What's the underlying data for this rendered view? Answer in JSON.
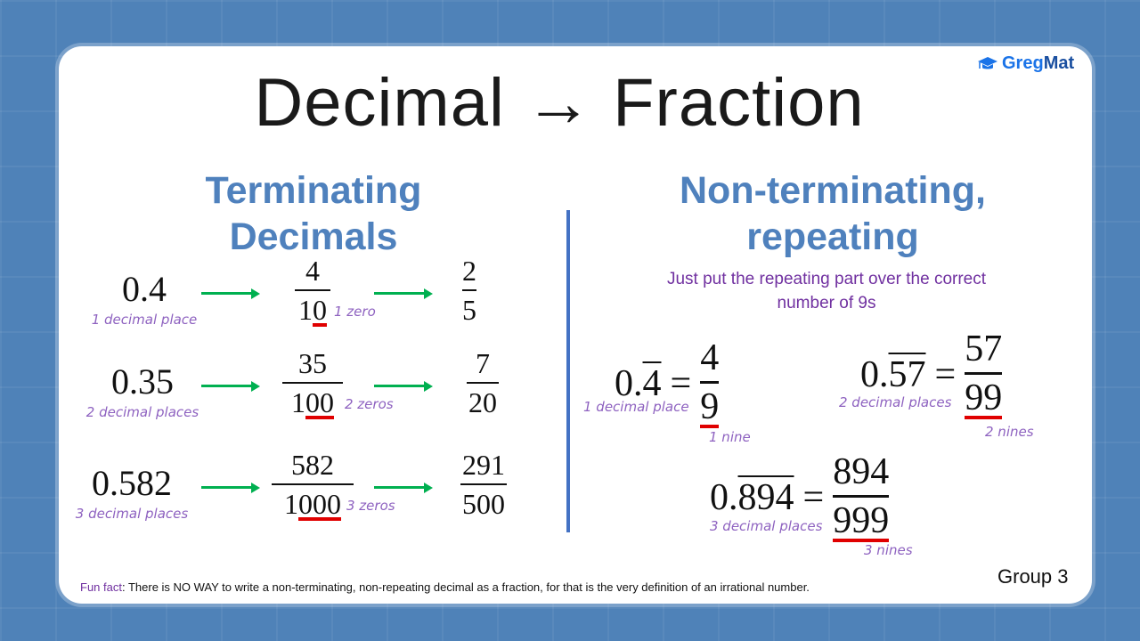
{
  "title": "Decimal → Fraction",
  "logo": {
    "text_a": "Greg",
    "text_b": "Mat",
    "icon": "graduation-cap-icon",
    "color": "#1a73e8"
  },
  "terminating": {
    "heading_1": "Terminating",
    "heading_2": "Decimals",
    "rows": [
      {
        "decimal": "0.4",
        "note": "1 decimal place",
        "num": "4",
        "den_lead": "1",
        "den_zeros": "0",
        "zeros_note": "1 zero",
        "s_num": "2",
        "s_den": "5"
      },
      {
        "decimal": "0.35",
        "note": "2 decimal places",
        "num": "35",
        "den_lead": "1",
        "den_zeros": "00",
        "zeros_note": "2 zeros",
        "s_num": "7",
        "s_den": "20"
      },
      {
        "decimal": "0.582",
        "note": "3 decimal places",
        "num": "582",
        "den_lead": "1",
        "den_zeros": "000",
        "zeros_note": "3 zeros",
        "s_num": "291",
        "s_den": "500"
      }
    ]
  },
  "repeating": {
    "heading_1": "Non-terminating,",
    "heading_2": "repeating",
    "subtitle_1": "Just put the repeating part over the correct",
    "subtitle_2": "number of 9s",
    "items": [
      {
        "lead": "0.",
        "repeat": "4",
        "eq": "=",
        "num": "4",
        "den": "9",
        "note": "1 decimal place",
        "nines_note": "1 nine"
      },
      {
        "lead": "0.",
        "repeat": "57",
        "eq": "=",
        "num": "57",
        "den": "99",
        "note": "2 decimal places",
        "nines_note": "2 nines"
      },
      {
        "lead": "0.",
        "repeat": "894",
        "eq": "=",
        "num": "894",
        "den": "999",
        "note": "3 decimal places",
        "nines_note": "3 nines"
      }
    ]
  },
  "footer": {
    "fun_label": "Fun fact",
    "fun_text": ": There is NO WAY to write a non-terminating, non-repeating decimal as a fraction, for that is the very definition of an irrational number.",
    "group": "Group 3"
  },
  "colors": {
    "heading": "#4f81bd",
    "note": "#8e62c0",
    "subtitle": "#7030a0",
    "arrow": "#00b050",
    "underline": "#e00000",
    "divider": "#4472c4"
  }
}
